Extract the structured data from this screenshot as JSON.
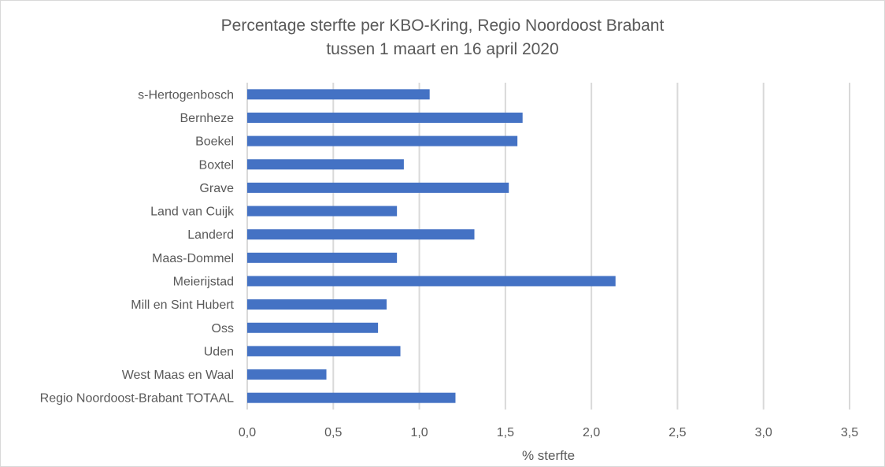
{
  "chart_data": {
    "type": "bar",
    "orientation": "horizontal",
    "title": [
      "Percentage sterfte per KBO-Kring, Regio Noordoost Brabant",
      "tussen 1 maart en 16 april 2020"
    ],
    "xlabel": "% sterfte",
    "ylabel": "",
    "xlim": [
      0,
      3.5
    ],
    "xticks": [
      "0,0",
      "0,5",
      "1,0",
      "1,5",
      "2,0",
      "2,5",
      "3,0",
      "3,5"
    ],
    "grid": true,
    "bar_color": "#4472C4",
    "categories": [
      "s-Hertogenbosch",
      "Bernheze",
      "Boekel",
      "Boxtel",
      "Grave",
      "Land van Cuijk",
      "Landerd",
      "Maas-Dommel",
      "Meierijstad",
      "Mill en Sint Hubert",
      "Oss",
      "Uden",
      "West Maas en Waal",
      "Regio Noordoost-Brabant TOTAAL"
    ],
    "values": [
      1.06,
      1.6,
      1.57,
      0.91,
      1.52,
      0.87,
      1.32,
      0.87,
      2.14,
      0.81,
      0.76,
      0.89,
      0.46,
      1.21
    ]
  }
}
